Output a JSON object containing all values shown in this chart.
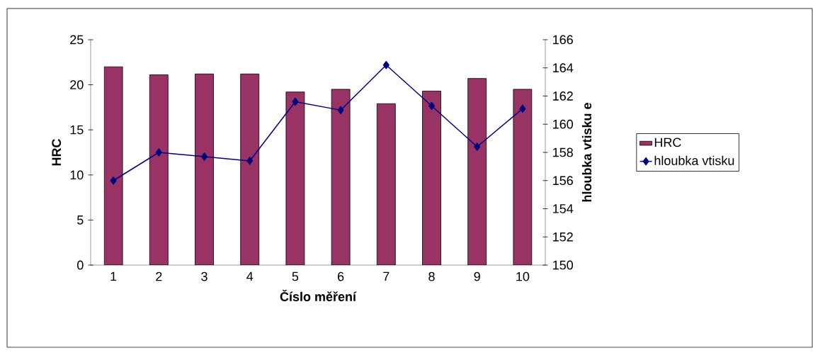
{
  "chart_data": {
    "type": "bar",
    "xlabel": "Číslo měření",
    "ylabel": "HRC",
    "y2label": "hloubka vtisku e",
    "categories": [
      "1",
      "2",
      "3",
      "4",
      "5",
      "6",
      "7",
      "8",
      "9",
      "10"
    ],
    "series": [
      {
        "name": "HRC",
        "color": "#993366",
        "values": [
          22.0,
          21.1,
          21.2,
          21.2,
          19.2,
          19.5,
          17.9,
          19.3,
          20.7,
          19.5
        ]
      },
      {
        "name": "hloubka vtisku",
        "type": "line",
        "axis": "y2",
        "color": "#000080",
        "marker": "diamond",
        "values": [
          156.0,
          158.0,
          157.7,
          157.4,
          161.6,
          161.0,
          164.2,
          161.3,
          158.4,
          161.1
        ]
      }
    ],
    "ylim": [
      0,
      25
    ],
    "yticks": [
      0,
      5,
      10,
      15,
      20,
      25
    ],
    "y2lim": [
      150,
      166
    ],
    "y2ticks": [
      150,
      152,
      154,
      156,
      158,
      160,
      162,
      164,
      166
    ],
    "legend": "right",
    "grid": false
  }
}
